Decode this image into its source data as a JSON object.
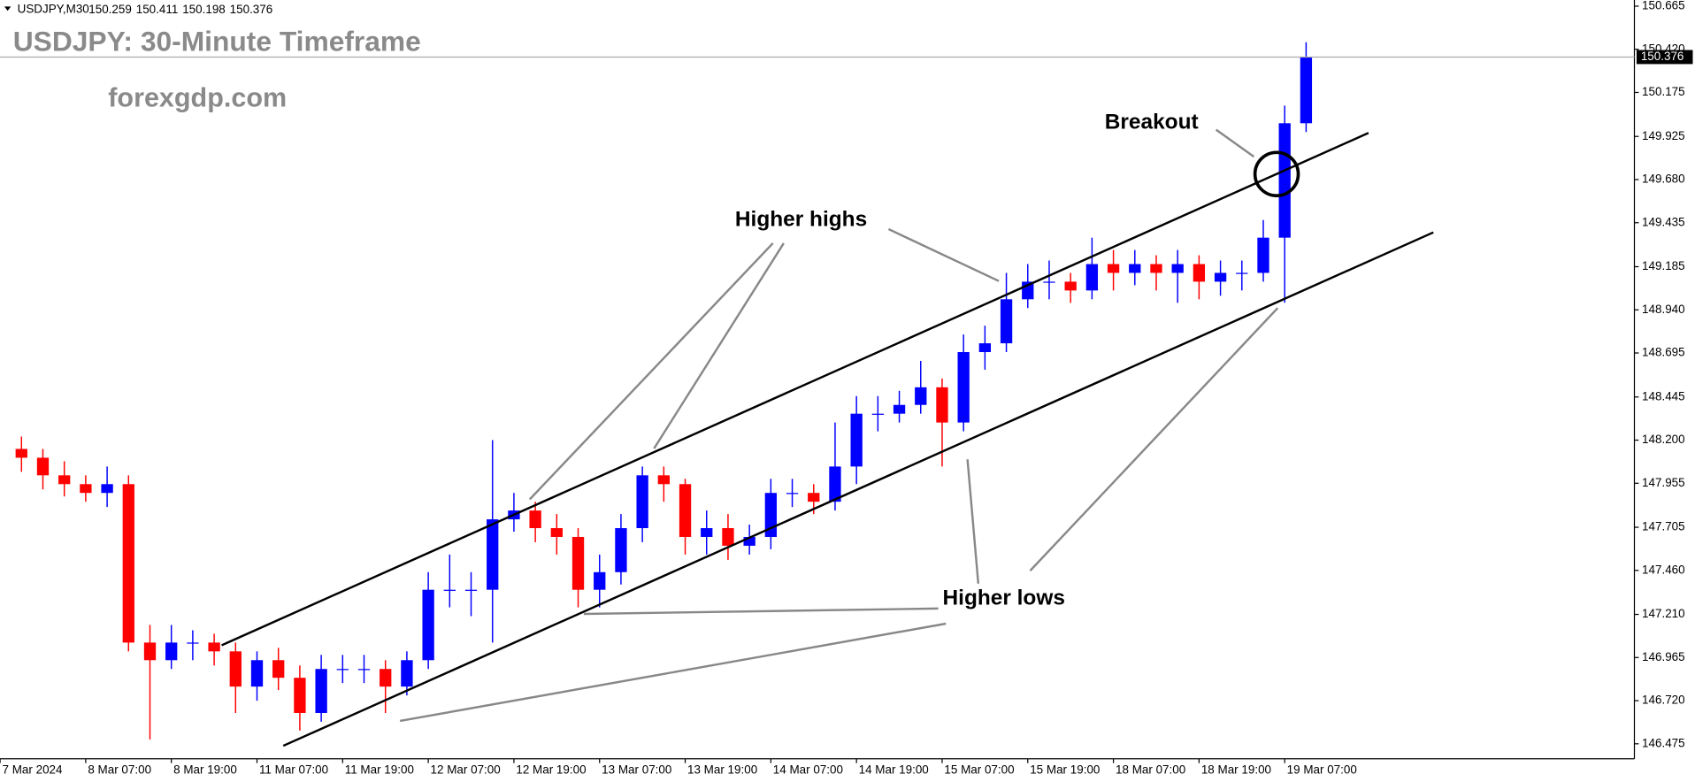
{
  "chart_data": {
    "type": "candlestick",
    "symbol": "USDJPY,M30",
    "header_ohlc": [
      150.259,
      150.411,
      150.198,
      150.376
    ],
    "title": "USDJPY: 30-Minute Timeframe",
    "watermark": "forexgdp.com",
    "annotations": [
      "Higher highs",
      "Breakout",
      "Higher lows"
    ],
    "up_color": "#0000ff",
    "down_color": "#ff0000",
    "price_line": 150.376,
    "xlim": [
      0,
      458
    ],
    "ylim": [
      146.39,
      150.7
    ],
    "xticks": [
      {
        "value": 0,
        "label": "7 Mar 2024"
      },
      {
        "value": 24,
        "label": "8 Mar 07:00"
      },
      {
        "value": 48,
        "label": "8 Mar 19:00"
      },
      {
        "value": 72,
        "label": "11 Mar 07:00"
      },
      {
        "value": 96,
        "label": "11 Mar 19:00"
      },
      {
        "value": 120,
        "label": "12 Mar 07:00"
      },
      {
        "value": 144,
        "label": "12 Mar 19:00"
      },
      {
        "value": 168,
        "label": "13 Mar 07:00"
      },
      {
        "value": 192,
        "label": "13 Mar 19:00"
      },
      {
        "value": 216,
        "label": "14 Mar 07:00"
      },
      {
        "value": 240,
        "label": "14 Mar 19:00"
      },
      {
        "value": 264,
        "label": "15 Mar 07:00"
      },
      {
        "value": 288,
        "label": "15 Mar 19:00"
      },
      {
        "value": 312,
        "label": "18 Mar 07:00"
      },
      {
        "value": 336,
        "label": "18 Mar 19:00"
      },
      {
        "value": 360,
        "label": "19 Mar 07:00"
      }
    ],
    "yticks": [
      146.475,
      {
        "value": 146.72,
        "label": "146.720"
      },
      146.965,
      {
        "value": 147.21,
        "label": "147.210"
      },
      {
        "value": 147.46,
        "label": "147.460"
      },
      147.705,
      147.955,
      {
        "value": 148.2,
        "label": "148.200"
      },
      148.445,
      148.695,
      {
        "value": 148.94,
        "label": "148.940"
      },
      149.185,
      149.435,
      {
        "value": 149.68,
        "label": "149.680"
      },
      149.925,
      150.175,
      {
        "value": 150.42,
        "label": "150.420"
      },
      150.665
    ],
    "x": [
      6,
      12,
      18,
      24,
      30,
      36,
      42,
      48,
      54,
      60,
      66,
      72,
      78,
      84,
      90,
      96,
      102,
      108,
      114,
      120,
      126,
      132,
      138,
      144,
      150,
      156,
      162,
      168,
      174,
      180,
      186,
      192,
      198,
      204,
      210,
      216,
      222,
      228,
      234,
      240,
      246,
      252,
      258,
      264,
      270,
      276,
      282,
      288,
      294,
      300,
      306,
      312,
      318,
      324,
      330,
      336,
      342,
      348,
      354,
      360,
      366
    ],
    "open": [
      148.15,
      148.1,
      148.0,
      147.95,
      147.9,
      147.95,
      147.05,
      146.95,
      147.05,
      147.05,
      147.0,
      146.8,
      146.95,
      146.85,
      146.65,
      146.9,
      146.9,
      146.9,
      146.8,
      146.95,
      147.35,
      147.35,
      147.35,
      147.75,
      147.8,
      147.7,
      147.65,
      147.35,
      147.45,
      147.7,
      148.0,
      147.95,
      147.65,
      147.7,
      147.6,
      147.65,
      147.9,
      147.9,
      147.85,
      148.05,
      148.35,
      148.35,
      148.4,
      148.5,
      148.3,
      148.7,
      148.75,
      149.0,
      149.1,
      149.1,
      149.05,
      149.2,
      149.15,
      149.2,
      149.15,
      149.2,
      149.1,
      149.15,
      149.15,
      149.35,
      150.0
    ],
    "high": [
      148.22,
      148.15,
      148.08,
      148.0,
      148.05,
      148.0,
      147.15,
      147.15,
      147.12,
      147.1,
      147.05,
      147.0,
      147.02,
      146.92,
      146.98,
      146.98,
      146.98,
      146.95,
      147.0,
      147.45,
      147.55,
      147.45,
      148.2,
      147.9,
      147.85,
      147.78,
      147.7,
      147.55,
      147.78,
      148.05,
      148.05,
      147.98,
      147.8,
      147.78,
      147.72,
      147.98,
      147.98,
      147.95,
      148.3,
      148.45,
      148.45,
      148.48,
      148.65,
      148.55,
      148.8,
      148.85,
      149.15,
      149.2,
      149.22,
      149.15,
      149.35,
      149.28,
      149.28,
      149.25,
      149.28,
      149.25,
      149.22,
      149.22,
      149.45,
      150.1,
      150.46
    ],
    "low": [
      148.02,
      147.92,
      147.88,
      147.85,
      147.82,
      147.0,
      146.5,
      146.9,
      146.95,
      146.92,
      146.65,
      146.72,
      146.78,
      146.55,
      146.6,
      146.82,
      146.82,
      146.65,
      146.75,
      146.9,
      147.25,
      147.2,
      147.05,
      147.68,
      147.62,
      147.55,
      147.25,
      147.25,
      147.38,
      147.62,
      147.85,
      147.55,
      147.55,
      147.52,
      147.55,
      147.58,
      147.82,
      147.78,
      147.8,
      147.95,
      148.25,
      148.3,
      148.35,
      148.05,
      148.25,
      148.6,
      148.7,
      148.95,
      149.0,
      148.98,
      149.0,
      149.05,
      149.08,
      149.05,
      148.98,
      149.0,
      149.02,
      149.05,
      149.1,
      148.98,
      149.95
    ],
    "close": [
      148.1,
      148.0,
      147.95,
      147.9,
      147.95,
      147.05,
      146.95,
      147.05,
      147.05,
      147.0,
      146.8,
      146.95,
      146.85,
      146.65,
      146.9,
      146.9,
      146.9,
      146.8,
      146.95,
      147.35,
      147.35,
      147.35,
      147.75,
      147.8,
      147.7,
      147.65,
      147.35,
      147.45,
      147.7,
      148.0,
      147.95,
      147.65,
      147.7,
      147.6,
      147.65,
      147.9,
      147.9,
      147.85,
      148.05,
      148.35,
      148.35,
      148.4,
      148.5,
      148.3,
      148.7,
      148.75,
      149.0,
      149.1,
      149.1,
      149.05,
      149.2,
      149.15,
      149.2,
      149.15,
      149.2,
      149.1,
      149.15,
      149.15,
      149.35,
      150.0,
      150.376
    ]
  }
}
